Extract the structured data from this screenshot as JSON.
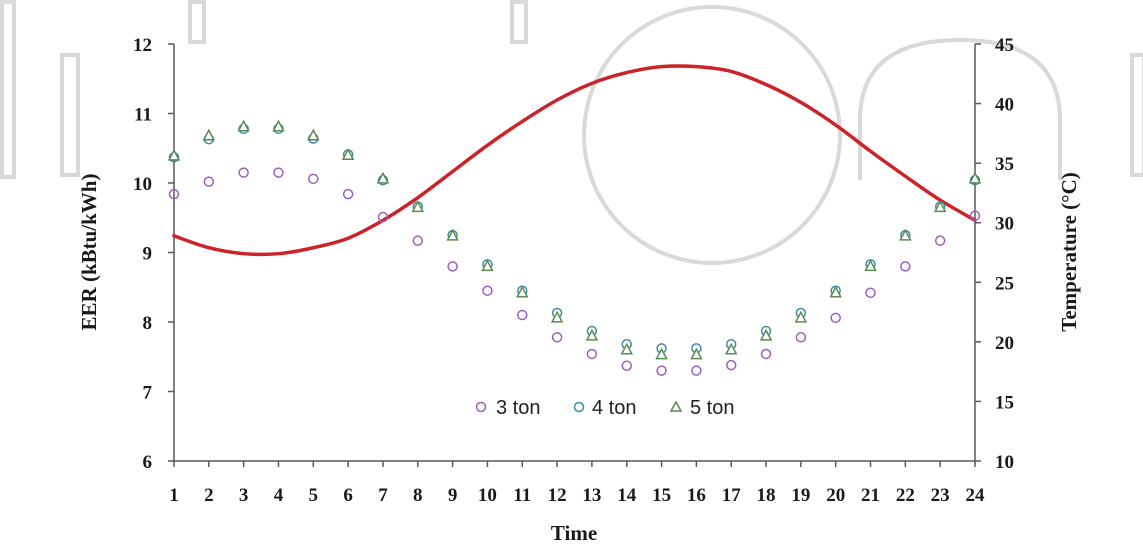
{
  "chart_data": {
    "type": "scatter",
    "title": "",
    "xlabel": "Time",
    "ylabel": "EER (kBtu/kWh)",
    "y2label": "Temperature (°C)",
    "x": [
      1,
      2,
      3,
      4,
      5,
      6,
      7,
      8,
      9,
      10,
      11,
      12,
      13,
      14,
      15,
      16,
      17,
      18,
      19,
      20,
      21,
      22,
      23,
      24
    ],
    "xlim": [
      1,
      24
    ],
    "ylim": [
      6,
      12
    ],
    "y2lim": [
      10,
      45
    ],
    "yticks": [
      6,
      7,
      8,
      9,
      10,
      11,
      12
    ],
    "y2ticks": [
      10,
      15,
      20,
      25,
      30,
      35,
      40,
      45
    ],
    "grid": false,
    "legend_position": "bottom-center",
    "series": [
      {
        "name": "3 ton",
        "axis": "left",
        "marker": "circle",
        "color": "#9b5fc0",
        "values": [
          9.84,
          10.02,
          10.15,
          10.15,
          10.06,
          9.84,
          9.51,
          9.17,
          8.8,
          8.45,
          8.1,
          7.78,
          7.54,
          7.37,
          7.3,
          7.3,
          7.38,
          7.54,
          7.78,
          8.06,
          8.42,
          8.8,
          9.17,
          9.53
        ]
      },
      {
        "name": "4 ton",
        "axis": "left",
        "marker": "circle",
        "color": "#3f8aa8",
        "values": [
          10.37,
          10.63,
          10.78,
          10.78,
          10.64,
          10.41,
          10.04,
          9.66,
          9.25,
          8.83,
          8.45,
          8.13,
          7.87,
          7.68,
          7.62,
          7.62,
          7.68,
          7.87,
          8.13,
          8.45,
          8.83,
          9.25,
          9.66,
          10.04
        ]
      },
      {
        "name": "5 ton",
        "axis": "left",
        "marker": "triangle",
        "color": "#5a8a50",
        "values": [
          10.39,
          10.68,
          10.81,
          10.81,
          10.68,
          10.4,
          10.06,
          9.65,
          9.24,
          8.8,
          8.42,
          8.06,
          7.8,
          7.6,
          7.53,
          7.53,
          7.6,
          7.8,
          8.06,
          8.42,
          8.8,
          9.24,
          9.65,
          10.06
        ]
      },
      {
        "name": "Temperature",
        "axis": "right",
        "marker": "line",
        "color": "#cc2229",
        "values": [
          28.9,
          27.9,
          27.4,
          27.4,
          27.9,
          28.7,
          30.2,
          32.1,
          34.3,
          36.5,
          38.5,
          40.3,
          41.7,
          42.6,
          43.1,
          43.1,
          42.7,
          41.6,
          40.1,
          38.2,
          36.0,
          33.9,
          31.9,
          30.2
        ]
      }
    ]
  }
}
